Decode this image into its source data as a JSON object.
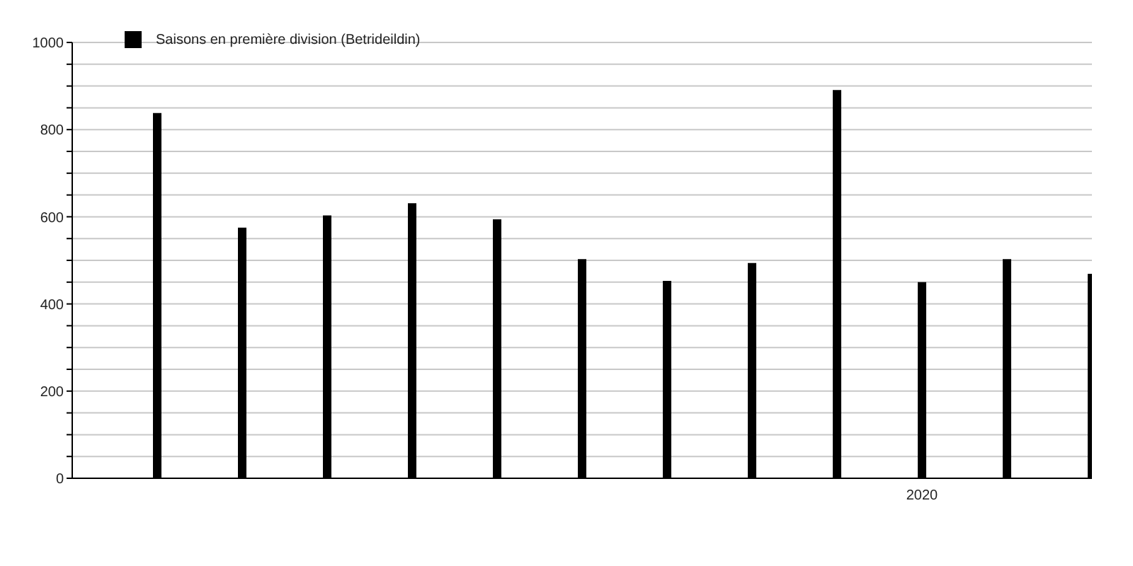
{
  "chart_data": {
    "type": "bar",
    "categories": [
      null,
      null,
      null,
      null,
      null,
      null,
      null,
      null,
      null,
      "2020",
      null,
      null
    ],
    "series": [
      {
        "name": "Saisons en première division (Betrideildin)",
        "color": "#000000",
        "values": [
          838,
          575,
          603,
          631,
          594,
          503,
          453,
          494,
          891,
          450,
          503,
          469
        ]
      }
    ],
    "ylim": [
      0,
      1000
    ],
    "yticks": [
      0,
      {
        "value": 50,
        "label": null
      },
      {
        "value": 100,
        "label": null
      },
      {
        "value": 150,
        "label": null
      },
      200,
      {
        "value": 250,
        "label": null
      },
      {
        "value": 300,
        "label": null
      },
      {
        "value": 350,
        "label": null
      },
      400,
      {
        "value": 450,
        "label": null
      },
      {
        "value": 500,
        "label": null
      },
      {
        "value": 550,
        "label": null
      },
      600,
      {
        "value": 650,
        "label": null
      },
      {
        "value": 700,
        "label": null
      },
      {
        "value": 750,
        "label": null
      },
      800,
      {
        "value": 850,
        "label": null
      },
      {
        "value": 900,
        "label": null
      },
      {
        "value": 950,
        "label": null
      },
      1000
    ],
    "grid": "y",
    "legend": "top left"
  }
}
